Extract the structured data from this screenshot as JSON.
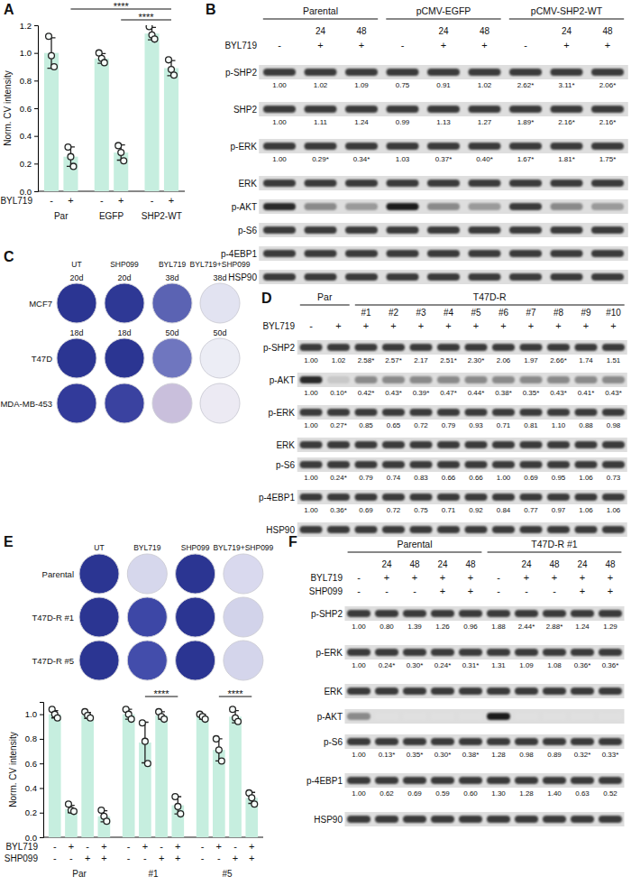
{
  "chart_data": [
    {
      "panel": "A",
      "type": "bar",
      "y_label": "Norm. CV intensity",
      "row_label": "BYL719",
      "categories": [
        "-",
        "+",
        "-",
        "+",
        "-",
        "+"
      ],
      "group_labels": [
        "Par",
        "EGFP",
        "SHP2-WT"
      ],
      "values": [
        1.0,
        0.25,
        0.96,
        0.28,
        1.14,
        0.89
      ],
      "errors": [
        0.11,
        0.07,
        0.035,
        0.055,
        0.045,
        0.055
      ],
      "points": [
        [
          1.12,
          0.98,
          0.9
        ],
        [
          0.32,
          0.25,
          0.18
        ],
        [
          1.0,
          0.96,
          0.93
        ],
        [
          0.33,
          0.28,
          0.22
        ],
        [
          1.19,
          1.13,
          1.1
        ],
        [
          0.95,
          0.88,
          0.84
        ]
      ],
      "color": "#c6eedf",
      "ylim": [
        0,
        1.2
      ],
      "yticks": [
        {
          "value": 0,
          "label": "0.0"
        },
        0.2,
        0.4,
        0.6,
        0.8,
        {
          "value": 1,
          "label": "1.0"
        },
        1.2
      ],
      "annotations": [
        {
          "text": "****",
          "from": 1,
          "to": 5
        },
        {
          "text": "****",
          "from": 3,
          "to": 5
        }
      ]
    },
    {
      "type": "bar",
      "y_label": "Norm. CV intensity",
      "row_label": "BYL719",
      "categories": [
        "-",
        "+",
        "-",
        "+",
        "-",
        "+",
        "-",
        "+",
        "-",
        "+",
        "-",
        "+"
      ],
      "row2_label": "SHP099",
      "row2": [
        "-",
        "-",
        "+",
        "+",
        "-",
        "-",
        "+",
        "+",
        "-",
        "-",
        "+",
        "+"
      ],
      "group_labels": [
        "Par",
        "#1",
        "#5"
      ],
      "values": [
        1.0,
        0.23,
        0.99,
        0.17,
        1.0,
        0.77,
        0.99,
        0.26,
        0.98,
        0.71,
        0.98,
        0.32
      ],
      "errors": [
        0.03,
        0.03,
        0.025,
        0.045,
        0.04,
        0.165,
        0.03,
        0.07,
        0.02,
        0.09,
        0.05,
        0.045
      ],
      "points": [
        [
          1.04,
          1.0,
          0.97
        ],
        [
          0.27,
          0.22,
          0.21
        ],
        [
          1.02,
          0.99,
          0.97
        ],
        [
          0.22,
          0.17,
          0.13
        ],
        [
          1.04,
          1.0,
          0.96
        ],
        [
          0.93,
          0.78,
          0.6
        ],
        [
          1.02,
          0.98,
          0.96
        ],
        [
          0.33,
          0.25,
          0.19
        ],
        [
          1.0,
          0.98,
          0.96
        ],
        [
          0.8,
          0.71,
          0.62
        ],
        [
          1.04,
          0.97,
          0.94
        ],
        [
          0.36,
          0.32,
          0.27
        ]
      ],
      "color": "#c6eedf",
      "ylim": [
        0,
        1.1
      ],
      "yticks": [
        {
          "value": 0,
          "label": "0.0"
        },
        0.2,
        0.4,
        0.6,
        0.8,
        {
          "value": 1,
          "label": "1.0"
        }
      ],
      "annotations": [
        {
          "text": "****",
          "from": 5,
          "to": 7
        },
        {
          "text": "****",
          "from": 9,
          "to": 11
        }
      ]
    }
  ],
  "blots": [
    {
      "panel": "B",
      "groups": [
        {
          "label": "Parental",
          "lanes": 3
        },
        {
          "label": "pCMV-EGFP",
          "lanes": 3
        },
        {
          "label": "pCMV-SHP2-WT",
          "lanes": 3
        }
      ],
      "lane_rows": [
        {
          "values": [
            null,
            24,
            48,
            null,
            24,
            48,
            null,
            24,
            48
          ]
        },
        {
          "label": "BYL719",
          "values": [
            "-",
            "+",
            "+",
            "-",
            "+",
            "+",
            "-",
            "+",
            "+"
          ]
        }
      ],
      "rows": [
        {
          "label": "p-SHP2",
          "quant": [
            "1.00",
            "1.02",
            "1.09",
            "0.75",
            "0.91",
            "1.02",
            "2.62*",
            "3.11*",
            "2.06*"
          ]
        },
        {
          "label": "SHP2",
          "quant": [
            "1.00",
            "1.11",
            "1.24",
            "0.99",
            "1.13",
            "1.27",
            "1.89*",
            "2.16*",
            "2.16*"
          ]
        },
        {
          "label": "p-ERK",
          "quant": [
            "1.00",
            "0.29*",
            "0.34*",
            "1.03",
            "0.37*",
            "0.40*",
            "1.67*",
            "1.81*",
            "1.75*"
          ]
        },
        {
          "label": "ERK"
        },
        {
          "label": "p-AKT",
          "colors": [
            "#2a2a2a",
            "#8a8a8a",
            "#9a9a9a",
            "#1e1e1e",
            "#8a8a8a",
            "#9a9a9a",
            "#3a3a3a",
            "#8a8a8a",
            "#9a9a9a"
          ]
        },
        {
          "label": "p-S6"
        },
        {
          "label": "p-4EBP1"
        },
        {
          "label": "HSP90"
        }
      ]
    },
    {
      "panel": "D",
      "groups": [
        {
          "label": "Par",
          "lanes": 2
        },
        {
          "label": "T47D-R",
          "lanes": 10
        }
      ],
      "lane_rows": [
        {
          "values": [
            null,
            null,
            "#1",
            "#2",
            "#3",
            "#4",
            "#5",
            "#6",
            "#7",
            "#8",
            "#9",
            "#10"
          ]
        },
        {
          "label": "BYL719",
          "values": [
            "-",
            "+",
            "+",
            "+",
            "+",
            "+",
            "+",
            "+",
            "+",
            "+",
            "+",
            "+"
          ]
        }
      ],
      "rows": [
        {
          "label": "p-SHP2",
          "quant": [
            "1.00",
            "1.02",
            "2.58*",
            "2.57*",
            "2.17",
            "2.51*",
            "2.30*",
            "2.06",
            "1.97",
            "2.66*",
            "1.74",
            "1.51"
          ]
        },
        {
          "label": "p-AKT",
          "quant": [
            "1.00",
            "0.10*",
            "0.42*",
            "0.43*",
            "0.39*",
            "0.47*",
            "0.44*",
            "0.38*",
            "0.35*",
            "0.43*",
            "0.41*",
            "0.43*"
          ],
          "colors": [
            "#2a2a2a",
            "#c8c8c8",
            "#8a8a8a",
            "#8a8a8a",
            "#8a8a8a",
            "#8a8a8a",
            "#8a8a8a",
            "#8a8a8a",
            "#8a8a8a",
            "#8a8a8a",
            "#8a8a8a",
            "#8a8a8a"
          ]
        },
        {
          "label": "p-ERK",
          "quant": [
            "1.00",
            "0.27*",
            "0.85",
            "0.65",
            "0.72",
            "0.79",
            "0.93",
            "0.71",
            "0.81",
            "1.10",
            "0.88",
            "0.98"
          ]
        },
        {
          "label": "ERK"
        },
        {
          "label": "p-S6",
          "quant": [
            "1.00",
            "0.24*",
            "0.79",
            "0.74",
            "0.83",
            "0.66",
            "0.66",
            "1.00",
            "0.69",
            "0.95",
            "1.06",
            "0.73"
          ]
        },
        {
          "label": "p-4EBP1",
          "quant": [
            "1.00",
            "0.36*",
            "0.69",
            "0.72",
            "0.75",
            "0.71",
            "0.92",
            "0.84",
            "0.77",
            "0.97",
            "1.06",
            "1.06"
          ]
        },
        {
          "label": "HSP90"
        }
      ]
    },
    {
      "panel": "F",
      "groups": [
        {
          "label": "Parental",
          "lanes": 5
        },
        {
          "label": "T47D-R #1",
          "lanes": 5
        }
      ],
      "lane_rows": [
        {
          "values": [
            null,
            24,
            48,
            24,
            48,
            null,
            24,
            48,
            24,
            48
          ]
        },
        {
          "label": "BYL719",
          "values": [
            "-",
            "+",
            "+",
            "+",
            "+",
            "-",
            "+",
            "+",
            "+",
            "+"
          ]
        },
        {
          "label": "SHP099",
          "values": [
            "-",
            "-",
            "-",
            "+",
            "+",
            "-",
            "-",
            "-",
            "+",
            "+"
          ]
        }
      ],
      "rows": [
        {
          "label": "p-SHP2",
          "quant": [
            "1.00",
            "0.80",
            "1.39",
            "1.26",
            "0.96",
            "1.88",
            "2.44*",
            "2.88*",
            "1.24",
            "1.29"
          ]
        },
        {
          "label": "p-ERK",
          "quant": [
            "1.00",
            "0.24*",
            "0.30*",
            "0.24*",
            "0.31*",
            "1.31",
            "1.09",
            "1.08",
            "0.36*",
            "0.36*"
          ]
        },
        {
          "label": "ERK"
        },
        {
          "label": "p-AKT",
          "colors": [
            "#8a8a8a",
            "#e0e0e0",
            "#e0e0e0",
            "#e0e0e0",
            "#e0e0e0",
            "#1e1e1e",
            "#e0e0e0",
            "#e0e0e0",
            "#e0e0e0",
            "#e0e0e0"
          ]
        },
        {
          "label": "p-S6",
          "quant": [
            "1.00",
            "0.13*",
            "0.35*",
            "0.30*",
            "0.38*",
            "1.28",
            "0.98",
            "0.89",
            "0.32*",
            "0.33*"
          ]
        },
        {
          "label": "p-4EBP1",
          "quant": [
            "1.00",
            "0.62",
            "0.69",
            "0.59",
            "0.60",
            "1.30",
            "1.28",
            "1.40",
            "0.63",
            "0.52"
          ]
        },
        {
          "label": "HSP90"
        }
      ]
    }
  ],
  "colony_assays": [
    {
      "panel": "C",
      "columns": [
        "UT",
        "SHP099",
        "BYL719",
        "BYL719+SHP099"
      ],
      "rows": [
        {
          "label": "MCF7",
          "days": [
            "20d",
            "20d",
            "38d",
            "38d"
          ],
          "colors": [
            "#2b3592",
            "#2e3895",
            "#5b63b3",
            "#e2e3f1"
          ]
        },
        {
          "label": "T47D",
          "days": [
            "18d",
            "18d",
            "50d",
            "50d"
          ],
          "colors": [
            "#2b3592",
            "#2b3592",
            "#6f76bf",
            "#ecedf5"
          ]
        },
        {
          "label": "MDA-MB-453",
          "colors": [
            "#323a9a",
            "#3a42a0",
            "#c9bfdc",
            "#eceaf3"
          ]
        }
      ]
    },
    {
      "panel": "E",
      "columns": [
        "UT",
        "BYL719",
        "SHP099",
        "BYL719+SHP099"
      ],
      "rows": [
        {
          "label": "Parental",
          "colors": [
            "#2b3592",
            "#d6d7ec",
            "#2b3592",
            "#d9d9ee"
          ]
        },
        {
          "label": "T47D-R #1",
          "colors": [
            "#2b3592",
            "#3d47a6",
            "#2b3592",
            "#d2d3ea"
          ]
        },
        {
          "label": "T47D-R #5",
          "colors": [
            "#2b3592",
            "#434dab",
            "#2b3592",
            "#d4d5eb"
          ]
        }
      ]
    }
  ]
}
